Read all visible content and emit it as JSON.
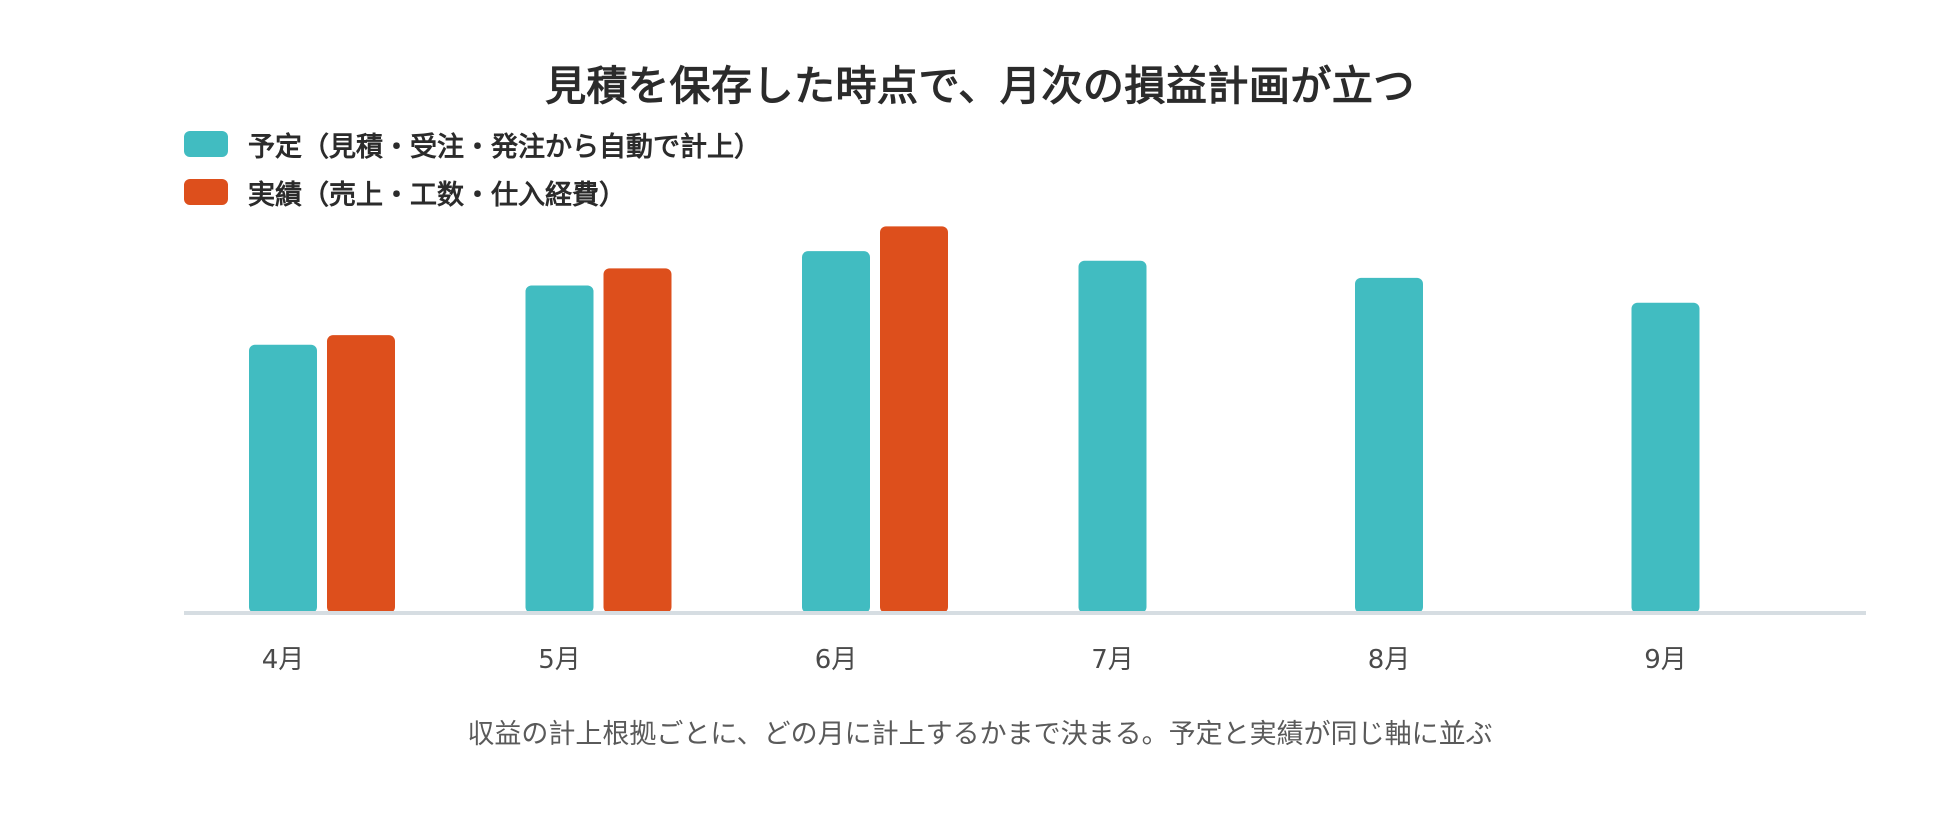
{
  "chart_data": {
    "type": "bar",
    "title": "見積を保存した時点で、月次の損益計画が立つ",
    "caption": "収益の計上根拠ごとに、どの月に計上するかまで決まる。予定と実績が同じ軸に並ぶ",
    "categories": [
      "4月",
      "5月",
      "6月",
      "7月",
      "8月",
      "9月"
    ],
    "series": [
      {
        "name": "予定（見積・受注・発注から自動で計上）",
        "color": "#41bcc1",
        "values": [
          70,
          85.5,
          94.5,
          92,
          87.5,
          81
        ]
      },
      {
        "name": "実績（売上・工数・仕入経費）",
        "color": "#dd4f1c",
        "values": [
          72.5,
          90,
          101,
          0,
          0,
          0
        ]
      }
    ],
    "ylim": [
      0,
      110
    ],
    "grid": false,
    "legend_position": "top-left",
    "axis_color": "#d6dde2"
  }
}
